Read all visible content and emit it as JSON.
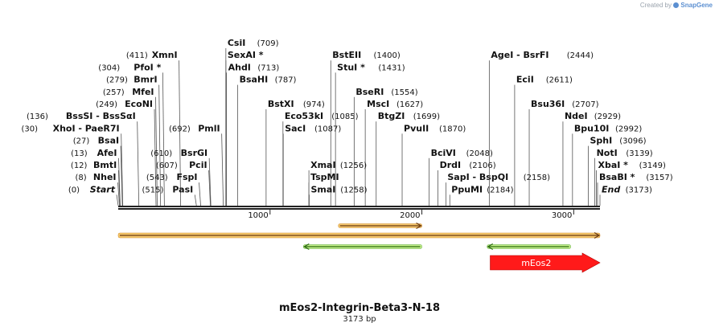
{
  "credit": {
    "prefix": "Created by",
    "brand": "SnapGene"
  },
  "title": "mEos2-Integrin-Beta3-N-18",
  "length_label": "3173 bp",
  "scale": {
    "start": 0,
    "end": 3173,
    "ticks": [
      {
        "value": 1000,
        "label": "1000"
      },
      {
        "value": 2000,
        "label": "2000"
      },
      {
        "value": 3000,
        "label": "3000"
      }
    ]
  },
  "sites": [
    {
      "name": "XmnI",
      "pos": "(411)",
      "bp": 411,
      "side": "left",
      "row": 1
    },
    {
      "name": "PfoI *",
      "pos": "(304)",
      "bp": 304,
      "side": "left",
      "row": 2
    },
    {
      "name": "BmrI",
      "pos": "(279)",
      "bp": 279,
      "side": "left",
      "row": 3
    },
    {
      "name": "MfeI",
      "pos": "(257)",
      "bp": 257,
      "side": "left",
      "row": 4
    },
    {
      "name": "EcoNI",
      "pos": "(249)",
      "bp": 249,
      "side": "left",
      "row": 5
    },
    {
      "name": "BssSI - BssSαI",
      "pos": "(136)",
      "bp": 136,
      "side": "left",
      "row": 6
    },
    {
      "name": "XhoI - PaeR7I",
      "pos": "(30)",
      "bp": 30,
      "side": "left",
      "row": 7
    },
    {
      "name": "BsaI",
      "pos": "(27)",
      "bp": 27,
      "side": "left",
      "row": 8
    },
    {
      "name": "AfeI",
      "pos": "(13)",
      "bp": 13,
      "side": "left",
      "row": 9
    },
    {
      "name": "BmtI",
      "pos": "(12)",
      "bp": 12,
      "side": "left",
      "row": 10
    },
    {
      "name": "NheI",
      "pos": "(8)",
      "bp": 8,
      "side": "left",
      "row": 11
    },
    {
      "name": "Start",
      "pos": "(0)",
      "bp": 0,
      "side": "left",
      "row": 12,
      "italic": true
    },
    {
      "name": "PmlI",
      "pos": "(692)",
      "bp": 692,
      "side": "left",
      "row": 7
    },
    {
      "name": "BsrGI",
      "pos": "(610)",
      "bp": 610,
      "side": "left",
      "row": 9
    },
    {
      "name": "PciI",
      "pos": "(607)",
      "bp": 607,
      "side": "left",
      "row": 10
    },
    {
      "name": "FspI",
      "pos": "(543)",
      "bp": 543,
      "side": "left",
      "row": 11
    },
    {
      "name": "PasI",
      "pos": "(515)",
      "bp": 515,
      "side": "left",
      "row": 12
    },
    {
      "name": "CsiI",
      "pos": "(709)",
      "bp": 709,
      "side": "right",
      "row": 0
    },
    {
      "name": "SexAI *",
      "pos": "",
      "bp": 709,
      "side": "right",
      "row": 1
    },
    {
      "name": "AhdI",
      "pos": "(713)",
      "bp": 713,
      "side": "right",
      "row": 2
    },
    {
      "name": "BsaHI",
      "pos": "(787)",
      "bp": 787,
      "side": "right",
      "row": 3
    },
    {
      "name": "BstXI",
      "pos": "(974)",
      "bp": 974,
      "side": "right",
      "row": 5
    },
    {
      "name": "Eco53kI",
      "pos": "(1085)",
      "bp": 1085,
      "side": "right",
      "row": 6
    },
    {
      "name": "SacI",
      "pos": "(1087)",
      "bp": 1087,
      "side": "right",
      "row": 7
    },
    {
      "name": "BstEII",
      "pos": "(1400)",
      "bp": 1400,
      "side": "right",
      "row": 1
    },
    {
      "name": "StuI *",
      "pos": "(1431)",
      "bp": 1431,
      "side": "right",
      "row": 2
    },
    {
      "name": "BseRI",
      "pos": "(1554)",
      "bp": 1554,
      "side": "right",
      "row": 4
    },
    {
      "name": "MscI",
      "pos": "(1627)",
      "bp": 1627,
      "side": "right",
      "row": 5
    },
    {
      "name": "BtgZI",
      "pos": "(1699)",
      "bp": 1699,
      "side": "right",
      "row": 6
    },
    {
      "name": "PvuII",
      "pos": "(1870)",
      "bp": 1870,
      "side": "right",
      "row": 7
    },
    {
      "name": "XmaI",
      "pos": "(1256)",
      "bp": 1256,
      "side": "right",
      "row": 10
    },
    {
      "name": "TspMI",
      "pos": "",
      "bp": 1256,
      "side": "right",
      "row": 11
    },
    {
      "name": "SmaI",
      "pos": "(1258)",
      "bp": 1258,
      "side": "right",
      "row": 12
    },
    {
      "name": "BciVI",
      "pos": "(2048)",
      "bp": 2048,
      "side": "right",
      "row": 9
    },
    {
      "name": "DrdI",
      "pos": "(2106)",
      "bp": 2106,
      "side": "right",
      "row": 10
    },
    {
      "name": "SapI - BspQI",
      "pos": "(2158)",
      "bp": 2158,
      "side": "right",
      "row": 11
    },
    {
      "name": "PpuMI",
      "pos": "(2184)",
      "bp": 2184,
      "side": "right",
      "row": 12
    },
    {
      "name": "AgeI - BsrFI",
      "pos": "(2444)",
      "bp": 2444,
      "side": "right",
      "row": 1
    },
    {
      "name": "EciI",
      "pos": "(2611)",
      "bp": 2611,
      "side": "right",
      "row": 3
    },
    {
      "name": "Bsu36I",
      "pos": "(2707)",
      "bp": 2707,
      "side": "right",
      "row": 5
    },
    {
      "name": "NdeI",
      "pos": "(2929)",
      "bp": 2929,
      "side": "right",
      "row": 6
    },
    {
      "name": "Bpu10I",
      "pos": "(2992)",
      "bp": 2992,
      "side": "right",
      "row": 7
    },
    {
      "name": "SphI",
      "pos": "(3096)",
      "bp": 3096,
      "side": "right",
      "row": 8
    },
    {
      "name": "NotI",
      "pos": "(3139)",
      "bp": 3139,
      "side": "right",
      "row": 9
    },
    {
      "name": "XbaI *",
      "pos": "(3149)",
      "bp": 3149,
      "side": "right",
      "row": 10
    },
    {
      "name": "BsaBI *",
      "pos": "(3157)",
      "bp": 3157,
      "side": "right",
      "row": 11
    },
    {
      "name": "End",
      "pos": "(3173)",
      "bp": 3173,
      "side": "right",
      "row": 12,
      "italic": true
    }
  ],
  "features": [
    {
      "name": "orf-long",
      "start": 0,
      "end": 3173,
      "strand": "+",
      "kind": "orf",
      "lane": 0
    },
    {
      "name": "orf-short-forward",
      "start": 1450,
      "end": 2000,
      "strand": "+",
      "kind": "orf",
      "lane": -1
    },
    {
      "name": "orf-reverse-1",
      "start": 1220,
      "end": 2000,
      "strand": "-",
      "kind": "orf-rev",
      "lane": 1
    },
    {
      "name": "orf-reverse-2",
      "start": 2430,
      "end": 2980,
      "strand": "-",
      "kind": "orf-rev",
      "lane": 1
    },
    {
      "name": "mEos2",
      "label": "mEos2",
      "start": 2450,
      "end": 3173,
      "strand": "+",
      "kind": "cds",
      "lane": 2
    }
  ],
  "colors": {
    "orf_fill": "#f5c96e",
    "orf_edge": "#d08a2a",
    "orf_line": "#6b3a12",
    "rev_fill": "#c6f08a",
    "rev_edge": "#5aa83a",
    "rev_line": "#2b6b12",
    "cds": "#ff1a1a",
    "cds_text": "#ffffff",
    "backbone": "#222222"
  }
}
